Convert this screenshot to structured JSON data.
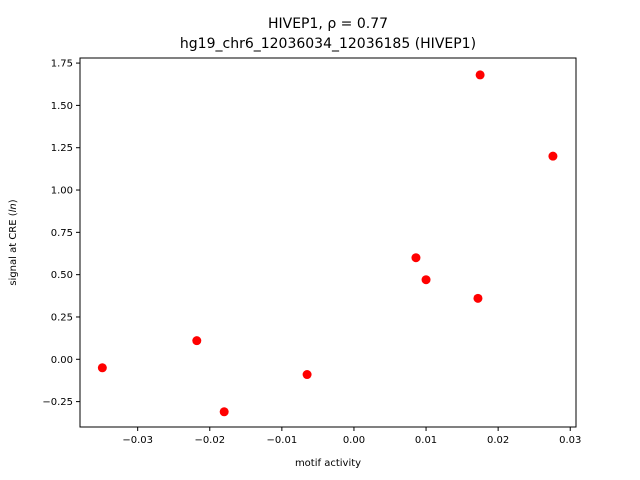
{
  "chart_data": {
    "type": "scatter",
    "title_prefix": "HIVEP1, ",
    "title_rho": "ρ = 0.77",
    "subtitle": "hg19_chr6_12036034_12036185 (HIVEP1)",
    "xlabel": "motif activity",
    "ylabel_prefix": "signal at CRE (",
    "ylabel_italic": "ln",
    "ylabel_suffix": ")",
    "xlim": [
      -0.038,
      0.0308
    ],
    "ylim": [
      -0.4,
      1.78
    ],
    "xticks": [
      {
        "value": -0.03,
        "label": "−0.03"
      },
      {
        "value": -0.02,
        "label": "−0.02"
      },
      {
        "value": -0.01,
        "label": "−0.01"
      },
      {
        "value": 0.0,
        "label": "0.00"
      },
      {
        "value": 0.01,
        "label": "0.01"
      },
      {
        "value": 0.02,
        "label": "0.02"
      },
      {
        "value": 0.03,
        "label": "0.03"
      }
    ],
    "yticks": [
      {
        "value": -0.25,
        "label": "−0.25"
      },
      {
        "value": 0.0,
        "label": "0.00"
      },
      {
        "value": 0.25,
        "label": "0.25"
      },
      {
        "value": 0.5,
        "label": "0.50"
      },
      {
        "value": 0.75,
        "label": "0.75"
      },
      {
        "value": 1.0,
        "label": "1.00"
      },
      {
        "value": 1.25,
        "label": "1.25"
      },
      {
        "value": 1.5,
        "label": "1.50"
      },
      {
        "value": 1.75,
        "label": "1.75"
      }
    ],
    "points": [
      {
        "x": -0.0349,
        "y": -0.05
      },
      {
        "x": -0.0218,
        "y": 0.11
      },
      {
        "x": -0.018,
        "y": -0.31
      },
      {
        "x": -0.0065,
        "y": -0.09
      },
      {
        "x": 0.0086,
        "y": 0.6
      },
      {
        "x": 0.01,
        "y": 0.47
      },
      {
        "x": 0.0172,
        "y": 0.36
      },
      {
        "x": 0.0175,
        "y": 1.68
      },
      {
        "x": 0.0276,
        "y": 1.2
      }
    ],
    "point_color": "#ff0000",
    "grid": false,
    "legend": "none"
  }
}
